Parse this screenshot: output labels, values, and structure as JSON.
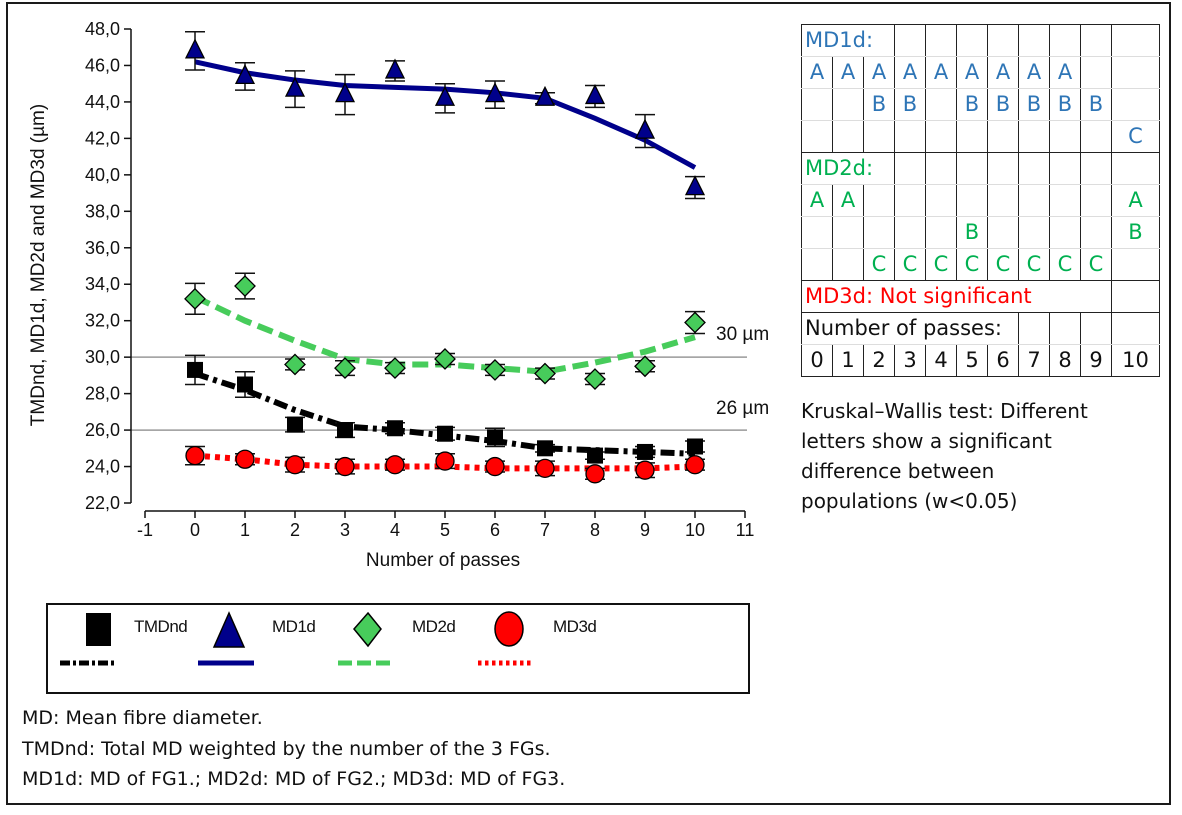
{
  "chart_data": {
    "type": "scatter",
    "title": "",
    "xlabel": "Number of passes",
    "ylabel": "TMDnd, MD1d, MD2d and MD3d (µm)",
    "xlim": [
      -1,
      11
    ],
    "ylim": [
      22,
      48
    ],
    "x_ticks": [
      "-1",
      "0",
      "1",
      "2",
      "3",
      "4",
      "5",
      "6",
      "7",
      "8",
      "9",
      "10",
      "11"
    ],
    "y_ticks": [
      "22,0",
      "24,0",
      "26,0",
      "28,0",
      "30,0",
      "32,0",
      "34,0",
      "36,0",
      "38,0",
      "40,0",
      "42,0",
      "44,0",
      "46,0",
      "48,0"
    ],
    "y_tick_values": [
      22,
      24,
      26,
      28,
      30,
      32,
      34,
      36,
      38,
      40,
      42,
      44,
      46,
      48
    ],
    "x": [
      0,
      1,
      2,
      3,
      4,
      5,
      6,
      7,
      8,
      9,
      10
    ],
    "reference_lines": [
      {
        "value": 30,
        "label": "30 µm"
      },
      {
        "value": 26,
        "label": "26 µm"
      }
    ],
    "series": [
      {
        "name": "TMDnd",
        "marker": "square",
        "line_style": "dash-dot",
        "color": "#000000",
        "values": [
          29.3,
          28.5,
          26.3,
          26.0,
          26.1,
          25.8,
          25.6,
          25.0,
          24.6,
          24.8,
          25.1
        ],
        "error": [
          0.8,
          0.7,
          0.4,
          0.4,
          0.3,
          0.35,
          0.5,
          0.2,
          0.2,
          0.3,
          0.3
        ],
        "trend": [
          29.1,
          28.2,
          27.1,
          26.2,
          26.0,
          25.7,
          25.4,
          25.0,
          24.9,
          24.8,
          24.7
        ]
      },
      {
        "name": "MD1d",
        "marker": "triangle",
        "line_style": "solid",
        "color": "#00008b",
        "values": [
          46.8,
          45.4,
          44.7,
          44.4,
          45.7,
          44.2,
          44.4,
          44.2,
          44.3,
          42.4,
          39.3
        ],
        "error": [
          1.05,
          0.75,
          1.0,
          1.1,
          0.55,
          0.8,
          0.75,
          0.3,
          0.6,
          0.9,
          0.6
        ],
        "trend": [
          46.2,
          45.6,
          45.2,
          44.9,
          44.8,
          44.7,
          44.5,
          44.2,
          43.1,
          41.9,
          40.4
        ]
      },
      {
        "name": "MD2d",
        "marker": "diamond",
        "line_style": "dashed",
        "color": "#47cc5b",
        "values": [
          33.2,
          33.9,
          29.6,
          29.4,
          29.4,
          29.9,
          29.3,
          29.1,
          28.8,
          29.5,
          31.9
        ],
        "error": [
          0.85,
          0.7,
          0.3,
          0.4,
          0.3,
          0.3,
          0.3,
          0.3,
          0.3,
          0.3,
          0.6
        ],
        "trend": [
          33.3,
          32.0,
          30.9,
          29.9,
          29.6,
          29.6,
          29.4,
          29.2,
          29.7,
          30.3,
          31.1
        ]
      },
      {
        "name": "MD3d",
        "marker": "circle",
        "line_style": "dotted",
        "color": "#ff0000",
        "values": [
          24.6,
          24.4,
          24.1,
          24.0,
          24.1,
          24.3,
          24.0,
          23.9,
          23.6,
          23.8,
          24.1
        ],
        "error": [
          0.5,
          0.3,
          0.4,
          0.4,
          0.3,
          0.4,
          0.3,
          0.4,
          0.3,
          0.4,
          0.3
        ],
        "trend": [
          24.6,
          24.4,
          24.1,
          24.0,
          24.0,
          24.0,
          23.9,
          23.9,
          23.9,
          23.9,
          24.0
        ]
      }
    ],
    "legend": {
      "placement": "bottom",
      "entries": [
        "TMDnd",
        "MD1d",
        "MD2d",
        "MD3d"
      ]
    }
  },
  "significance_table": {
    "md1d": {
      "title": "MD1d:",
      "rows": [
        [
          "A",
          "A",
          "A",
          "A",
          "A",
          "A",
          "A",
          "A",
          "A",
          "",
          ""
        ],
        [
          "",
          "",
          "B",
          "B",
          "",
          "B",
          "B",
          "B",
          "B",
          "B",
          ""
        ],
        [
          "",
          "",
          "",
          "",
          "",
          "",
          "",
          "",
          "",
          "",
          "C"
        ]
      ]
    },
    "md2d": {
      "title": "MD2d:",
      "rows": [
        [
          "A",
          "A",
          "",
          "",
          "",
          "",
          "",
          "",
          "",
          "",
          "A"
        ],
        [
          "",
          "",
          "",
          "",
          "",
          "B",
          "",
          "",
          "",
          "",
          "B"
        ],
        [
          "",
          "",
          "C",
          "C",
          "C",
          "C",
          "C",
          "C",
          "C",
          "C",
          ""
        ]
      ]
    },
    "md3d": {
      "title": "MD3d: Not significant"
    },
    "passes_label": "Number of passes:",
    "passes": [
      "0",
      "1",
      "2",
      "3",
      "4",
      "5",
      "6",
      "7",
      "8",
      "9",
      "10"
    ]
  },
  "kw_note": {
    "lines": [
      "Kruskal–Wallis test: Different",
      "letters show a significant",
      "difference between",
      "populations (w<0.05)"
    ]
  },
  "footnotes": [
    "MD: Mean fibre diameter.",
    "TMDnd: Total MD weighted by the number of the 3 FGs.",
    "MD1d: MD of FG1.; MD2d: MD of FG2.; MD3d: MD of FG3."
  ]
}
